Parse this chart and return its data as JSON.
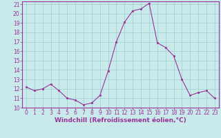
{
  "x": [
    0,
    1,
    2,
    3,
    4,
    5,
    6,
    7,
    8,
    9,
    10,
    11,
    12,
    13,
    14,
    15,
    16,
    17,
    18,
    19,
    20,
    21,
    22,
    23
  ],
  "y": [
    12.2,
    11.8,
    12.0,
    12.5,
    11.8,
    11.0,
    10.8,
    10.3,
    10.5,
    11.3,
    13.9,
    17.0,
    19.1,
    20.3,
    20.5,
    21.1,
    16.9,
    16.4,
    15.5,
    13.0,
    11.3,
    11.6,
    11.8,
    11.0
  ],
  "line_color": "#993399",
  "marker": "s",
  "marker_size": 2,
  "bg_color": "#c8eaea",
  "grid_color": "#a0cccc",
  "xlabel": "Windchill (Refroidissement éolien,°C)",
  "xlabel_color": "#993399",
  "ylim": [
    10,
    21
  ],
  "xlim": [
    -0.5,
    23.5
  ],
  "yticks": [
    10,
    11,
    12,
    13,
    14,
    15,
    16,
    17,
    18,
    19,
    20,
    21
  ],
  "xticks": [
    0,
    1,
    2,
    3,
    4,
    5,
    6,
    7,
    8,
    9,
    10,
    11,
    12,
    13,
    14,
    15,
    16,
    17,
    18,
    19,
    20,
    21,
    22,
    23
  ],
  "tick_label_size": 5.5,
  "xlabel_size": 6.5,
  "axis_color": "#993399",
  "spine_color": "#993399"
}
